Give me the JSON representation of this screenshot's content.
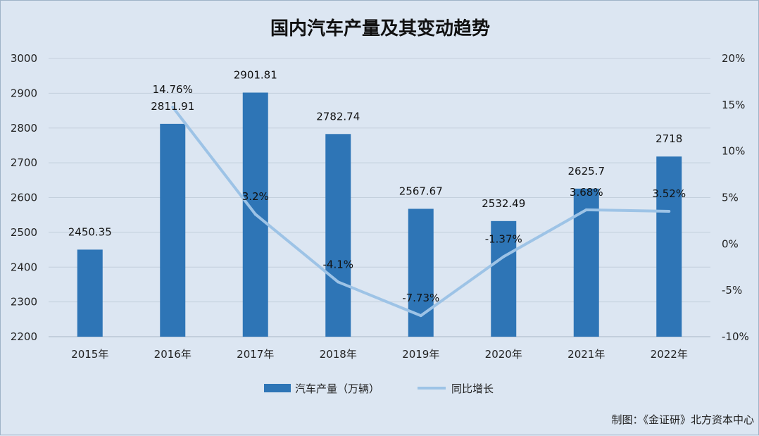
{
  "chart_data": {
    "type": "bar+line",
    "title": "国内汽车产量及其变动趋势",
    "categories": [
      "2015年",
      "2016年",
      "2017年",
      "2018年",
      "2019年",
      "2020年",
      "2021年",
      "2022年"
    ],
    "series": [
      {
        "name": "汽车产量（万辆）",
        "type": "bar",
        "axis": "left",
        "values": [
          2450.35,
          2811.91,
          2901.81,
          2782.74,
          2567.67,
          2532.49,
          2625.7,
          2718
        ],
        "labels": [
          "2450.35",
          "2811.91",
          "2901.81",
          "2782.74",
          "2567.67",
          "2532.49",
          "2625.7",
          "2718"
        ],
        "color": "#2e75b6"
      },
      {
        "name": "同比增长",
        "type": "line",
        "axis": "right",
        "values": [
          null,
          14.76,
          3.2,
          -4.1,
          -7.73,
          -1.37,
          3.68,
          3.52
        ],
        "labels": [
          "",
          "14.76%",
          "3.2%",
          "-4.1%",
          "-7.73%",
          "-1.37%",
          "3.68%",
          "3.52%"
        ],
        "color": "#9dc3e6"
      }
    ],
    "y_left": {
      "min": 2200,
      "max": 3000,
      "step": 100,
      "ticks": [
        "2200",
        "2300",
        "2400",
        "2500",
        "2600",
        "2700",
        "2800",
        "2900",
        "3000"
      ]
    },
    "y_right": {
      "min": -10,
      "max": 20,
      "step": 5,
      "ticks": [
        "-10%",
        "-5%",
        "0%",
        "5%",
        "10%",
        "15%",
        "20%"
      ]
    },
    "grid": true,
    "legend_position": "bottom"
  },
  "footer": {
    "source": "制图：《金证研》北方资本中心"
  }
}
